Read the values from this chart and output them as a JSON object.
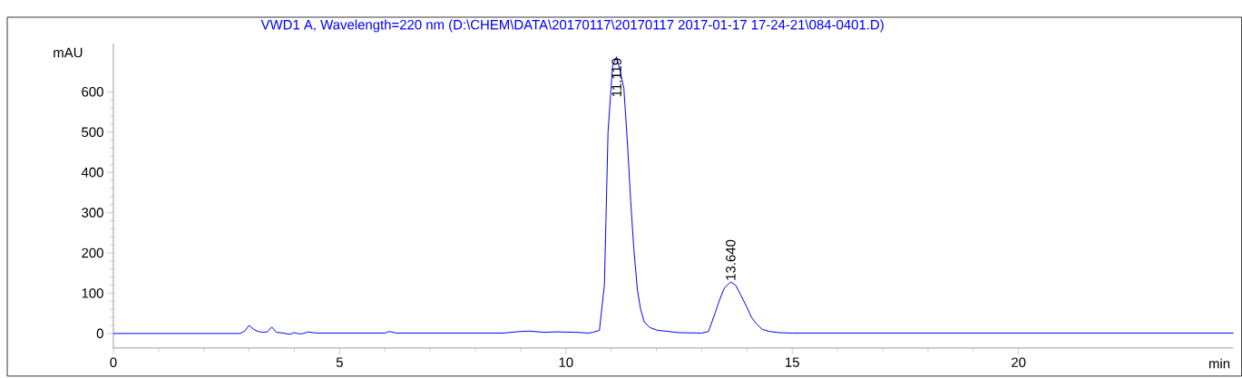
{
  "chart_data": {
    "type": "line",
    "title": "VWD1 A, Wavelength=220 nm (D:\\CHEM\\DATA\\20170117\\20170117 2017-01-17 17-24-21\\084-0401.D)",
    "xlabel": "min",
    "ylabel": "mAU",
    "xlim": [
      0,
      24.75
    ],
    "ylim": [
      -36,
      720
    ],
    "xticks": [
      0,
      5,
      10,
      15,
      20
    ],
    "yticks": [
      0,
      100,
      200,
      300,
      400,
      500,
      600
    ],
    "series": [
      {
        "color": "#0000ff",
        "x": [
          0,
          2.8,
          2.9,
          3.0,
          3.1,
          3.2,
          3.3,
          3.4,
          3.5,
          3.6,
          3.75,
          3.9,
          4.0,
          4.1,
          4.2,
          4.3,
          4.4,
          4.55,
          4.7,
          5.0,
          5.5,
          6.0,
          6.1,
          6.25,
          7.0,
          8.0,
          8.6,
          9.0,
          9.2,
          9.5,
          9.8,
          10.2,
          10.5,
          10.6,
          10.74,
          10.85,
          10.93,
          11.03,
          11.119,
          11.2,
          11.28,
          11.36,
          11.43,
          11.5,
          11.58,
          11.65,
          11.73,
          11.85,
          12.02,
          12.5,
          13.0,
          13.15,
          13.3,
          13.4,
          13.5,
          13.64,
          13.75,
          13.86,
          14.0,
          14.1,
          14.2,
          14.34,
          14.5,
          14.7,
          15.0,
          16.0,
          18.0,
          20.0,
          22.0,
          24.75
        ],
        "values": [
          0,
          0,
          6,
          20,
          10,
          5,
          3,
          4,
          16,
          3,
          1,
          -2,
          2,
          -1,
          0,
          4,
          2,
          1,
          1,
          1,
          1,
          1,
          5,
          1,
          1,
          1,
          1,
          5,
          6,
          3,
          4,
          3,
          1,
          3,
          8,
          120,
          500,
          664,
          687,
          650,
          609,
          470,
          330,
          210,
          107,
          60,
          29,
          15,
          8,
          2,
          1,
          5,
          52,
          85,
          113,
          128,
          120,
          96,
          65,
          40,
          25,
          10,
          5,
          2,
          1,
          1,
          1,
          1,
          1,
          1
        ]
      }
    ],
    "annotations": [
      {
        "text": "11.119",
        "x": 11.119,
        "y": 687
      },
      {
        "text": "13.640",
        "x": 13.64,
        "y": 128
      }
    ]
  }
}
